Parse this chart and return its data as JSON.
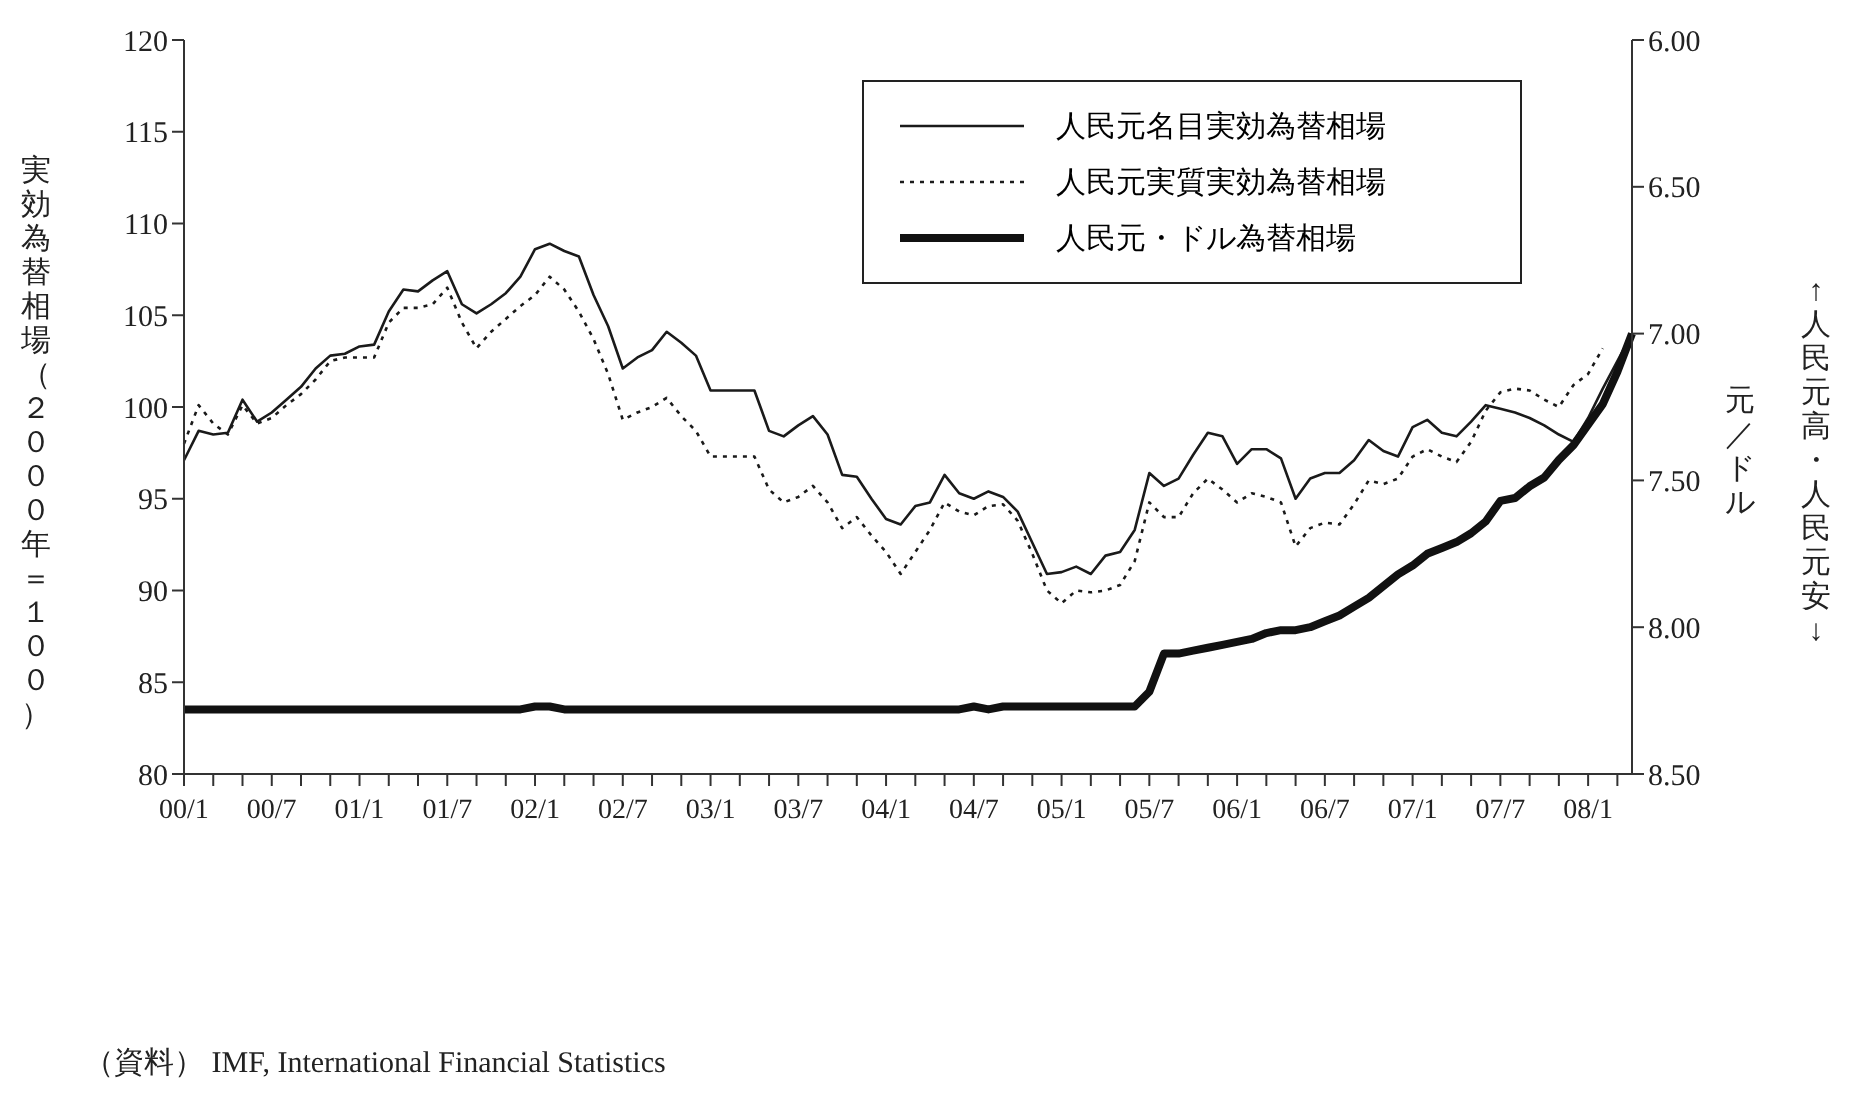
{
  "chart_data": {
    "type": "line",
    "ylabel": "実効為替相場（２０００年＝１００）",
    "y2label": "元／ドル",
    "annotations": [
      "↑人民元高・人民元安↓",
      "（資料） IMF, International Financial Statistics"
    ],
    "categories": [
      "00/1",
      null,
      null,
      null,
      null,
      null,
      "00/7",
      null,
      null,
      null,
      null,
      null,
      "01/1",
      null,
      null,
      null,
      null,
      null,
      "01/7",
      null,
      null,
      null,
      null,
      null,
      "02/1",
      null,
      null,
      null,
      null,
      null,
      "02/7",
      null,
      null,
      null,
      null,
      null,
      "03/1",
      null,
      null,
      null,
      null,
      null,
      "03/7",
      null,
      null,
      null,
      null,
      null,
      "04/1",
      null,
      null,
      null,
      null,
      null,
      "04/7",
      null,
      null,
      null,
      null,
      null,
      "05/1",
      null,
      null,
      null,
      null,
      null,
      "05/7",
      null,
      null,
      null,
      null,
      null,
      "06/1",
      null,
      null,
      null,
      null,
      null,
      "06/7",
      null,
      null,
      null,
      null,
      null,
      "07/1",
      null,
      null,
      null,
      null,
      null,
      "07/7",
      null,
      null,
      null,
      null,
      null,
      "08/1",
      null,
      null,
      null
    ],
    "series": [
      {
        "name": "人民元名目実効為替相場",
        "color": "#1a1a1a",
        "line_style": "solid",
        "values": [
          97.1,
          98.7,
          98.5,
          98.6,
          100.4,
          99.2,
          99.7,
          100.4,
          101.1,
          102.1,
          102.8,
          102.9,
          103.3,
          103.4,
          105.2,
          106.4,
          106.3,
          106.9,
          107.4,
          105.6,
          105.1,
          105.6,
          106.2,
          107.1,
          108.6,
          108.9,
          108.5,
          108.2,
          106.1,
          104.4,
          102.1,
          102.7,
          103.1,
          104.1,
          103.5,
          102.8,
          100.9,
          100.9,
          100.9,
          100.9,
          98.7,
          98.4,
          99.0,
          99.5,
          98.5,
          96.3,
          96.2,
          95.0,
          93.9,
          93.6,
          94.6,
          94.8,
          96.3,
          95.3,
          95.0,
          95.4,
          95.1,
          94.3,
          92.6,
          90.9,
          91.0,
          91.3,
          90.9,
          91.9,
          92.1,
          93.3,
          96.4,
          95.7,
          96.1,
          97.4,
          98.6,
          98.4,
          96.9,
          97.7,
          97.7,
          97.2,
          95.0,
          96.1,
          96.4,
          96.4,
          97.1,
          98.2,
          97.6,
          97.3,
          98.9,
          99.3,
          98.6,
          98.4,
          99.2,
          100.1,
          99.9,
          99.7,
          99.4,
          99.0,
          98.5,
          98.1,
          99.4,
          101.0,
          102.5,
          104.0
        ]
      },
      {
        "name": "人民元実質実効為替相場",
        "color": "#1a1a1a",
        "line_style": "dotted",
        "values": [
          98.0,
          100.1,
          99.1,
          98.5,
          100.1,
          99.1,
          99.4,
          100.1,
          100.7,
          101.5,
          102.5,
          102.7,
          102.7,
          102.7,
          104.6,
          105.4,
          105.4,
          105.6,
          106.5,
          104.6,
          103.2,
          104.1,
          104.8,
          105.5,
          106.1,
          107.1,
          106.4,
          105.2,
          103.7,
          101.8,
          99.3,
          99.7,
          100.0,
          100.5,
          99.5,
          98.7,
          97.3,
          97.3,
          97.3,
          97.3,
          95.5,
          94.8,
          95.1,
          95.7,
          94.8,
          93.4,
          94.0,
          93.0,
          92.1,
          90.9,
          92.1,
          93.3,
          94.8,
          94.3,
          94.1,
          94.6,
          94.7,
          93.8,
          92.0,
          90.0,
          89.3,
          90.0,
          89.9,
          90.0,
          90.3,
          91.6,
          94.8,
          94.0,
          94.0,
          95.3,
          96.1,
          95.5,
          94.8,
          95.3,
          95.1,
          94.8,
          92.4,
          93.4,
          93.7,
          93.6,
          94.7,
          96.0,
          95.8,
          96.1,
          97.3,
          97.7,
          97.3,
          97.0,
          98.1,
          99.8,
          100.8,
          101.0,
          100.9,
          100.4,
          100.0,
          101.2,
          101.8,
          103.2,
          null,
          null
        ]
      },
      {
        "name": "人民元・ドル為替相場",
        "color": "#111111",
        "line_style": "solid",
        "axis": "y2",
        "values": [
          8.28,
          8.28,
          8.28,
          8.28,
          8.28,
          8.28,
          8.28,
          8.28,
          8.28,
          8.28,
          8.28,
          8.28,
          8.28,
          8.28,
          8.28,
          8.28,
          8.28,
          8.28,
          8.28,
          8.28,
          8.28,
          8.28,
          8.28,
          8.28,
          8.27,
          8.27,
          8.28,
          8.28,
          8.28,
          8.28,
          8.28,
          8.28,
          8.28,
          8.28,
          8.28,
          8.28,
          8.28,
          8.28,
          8.28,
          8.28,
          8.28,
          8.28,
          8.28,
          8.28,
          8.28,
          8.28,
          8.28,
          8.28,
          8.28,
          8.28,
          8.28,
          8.28,
          8.28,
          8.28,
          8.27,
          8.28,
          8.27,
          8.27,
          8.27,
          8.27,
          8.27,
          8.27,
          8.27,
          8.27,
          8.27,
          8.27,
          8.22,
          8.09,
          8.09,
          8.08,
          8.07,
          8.06,
          8.05,
          8.04,
          8.02,
          8.01,
          8.01,
          8.0,
          7.98,
          7.96,
          7.93,
          7.9,
          7.86,
          7.82,
          7.79,
          7.75,
          7.73,
          7.71,
          7.68,
          7.64,
          7.57,
          7.56,
          7.52,
          7.49,
          7.43,
          7.38,
          7.31,
          7.24,
          7.13,
          7.0
        ]
      }
    ],
    "ylim": [
      80,
      120
    ],
    "yticks": [
      80,
      85,
      90,
      95,
      100,
      105,
      110,
      115,
      120
    ],
    "y2lim": [
      8.5,
      6.0
    ],
    "y2ticks": [
      {
        "value": 6,
        "label": "6.00"
      },
      {
        "value": 6.5,
        "label": "6.50"
      },
      {
        "value": 7,
        "label": "7.00"
      },
      {
        "value": 7.5,
        "label": "7.50"
      },
      {
        "value": 8,
        "label": "8.00"
      },
      {
        "value": 8.5,
        "label": "8.50"
      }
    ],
    "legend": "top right",
    "grid": false
  }
}
